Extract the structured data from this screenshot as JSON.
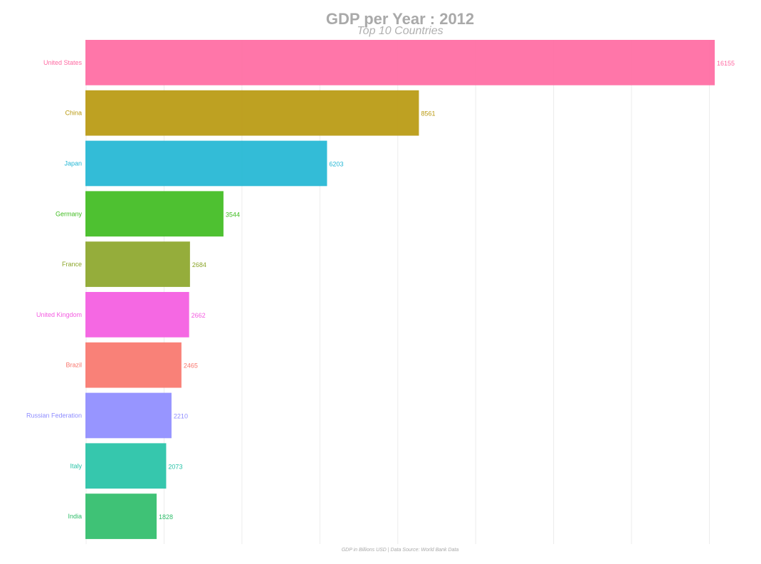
{
  "chart_data": {
    "type": "bar",
    "orientation": "horizontal",
    "title": "GDP per Year : 2012",
    "subtitle": "Top 10 Countries",
    "caption": "GDP in Billions USD | Data Source: World Bank Data",
    "categories": [
      "United States",
      "China",
      "Japan",
      "Germany",
      "France",
      "United Kingdom",
      "Brazil",
      "Russian Federation",
      "Italy",
      "India"
    ],
    "values": [
      16155,
      8561,
      6203,
      3544,
      2684,
      2662,
      2465,
      2210,
      2073,
      1828
    ],
    "value_labels": [
      "16155",
      "8561",
      "6203",
      "3544",
      "2684",
      "2662",
      "2465",
      "2210",
      "2073",
      "1828"
    ],
    "colors": [
      "#ff6aa2",
      "#b9990f",
      "#22b6d4",
      "#3fbc1f",
      "#8ca62a",
      "#f45be1",
      "#f8766d",
      "#8e8cff",
      "#25c2a6",
      "#2fbd6a"
    ],
    "xlim": [
      0,
      16155
    ],
    "grid": true,
    "legend": "none"
  }
}
